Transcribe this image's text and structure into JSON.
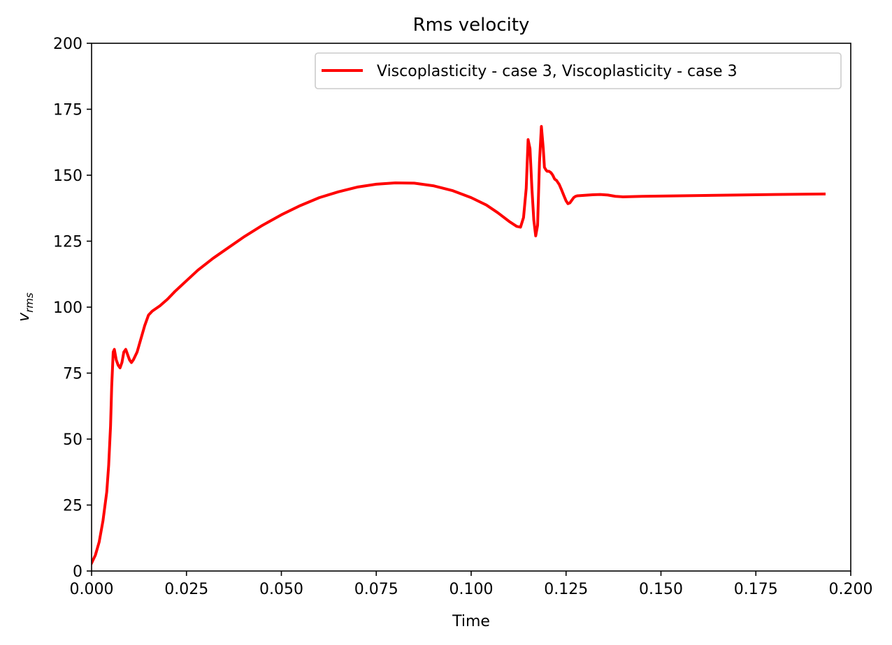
{
  "chart_data": {
    "type": "line",
    "title": "Rms velocity",
    "xlabel": "Time",
    "ylabel_main": "v",
    "ylabel_sub": "rms",
    "xlim": [
      0,
      0.2
    ],
    "ylim": [
      0,
      200
    ],
    "x_ticks": [
      0,
      0.025,
      0.05,
      0.075,
      0.1,
      0.125,
      0.15,
      0.175,
      0.2
    ],
    "x_tick_labels": [
      "0.000",
      "0.025",
      "0.050",
      "0.075",
      "0.100",
      "0.125",
      "0.150",
      "0.175",
      "0.200"
    ],
    "y_ticks": [
      0,
      25,
      50,
      75,
      100,
      125,
      150,
      175,
      200
    ],
    "y_tick_labels": [
      "0",
      "25",
      "50",
      "75",
      "100",
      "125",
      "150",
      "175",
      "200"
    ],
    "grid": false,
    "legend_position": "top-right",
    "series": [
      {
        "name": "Viscoplasticity - case 3, Viscoplasticity - case 3",
        "color": "#ff0000",
        "x": [
          0.0,
          0.001,
          0.002,
          0.003,
          0.004,
          0.0045,
          0.005,
          0.0053,
          0.0057,
          0.006,
          0.0065,
          0.007,
          0.0075,
          0.008,
          0.0085,
          0.009,
          0.0095,
          0.01,
          0.0105,
          0.011,
          0.012,
          0.013,
          0.014,
          0.015,
          0.016,
          0.017,
          0.018,
          0.02,
          0.022,
          0.025,
          0.028,
          0.032,
          0.036,
          0.04,
          0.045,
          0.05,
          0.055,
          0.06,
          0.065,
          0.07,
          0.075,
          0.08,
          0.085,
          0.09,
          0.095,
          0.1,
          0.104,
          0.107,
          0.11,
          0.112,
          0.113,
          0.1138,
          0.1145,
          0.115,
          0.1155,
          0.116,
          0.1165,
          0.117,
          0.1175,
          0.118,
          0.1185,
          0.119,
          0.1193,
          0.1197,
          0.12,
          0.1205,
          0.121,
          0.1215,
          0.122,
          0.1225,
          0.1232,
          0.1238,
          0.1245,
          0.125,
          0.1255,
          0.126,
          0.1265,
          0.127,
          0.1275,
          0.128,
          0.129,
          0.13,
          0.132,
          0.134,
          0.136,
          0.138,
          0.14,
          0.145,
          0.15,
          0.16,
          0.17,
          0.18,
          0.193
        ],
        "y": [
          3,
          6,
          11,
          19,
          30,
          40,
          55,
          70,
          83,
          84,
          80,
          78,
          77,
          79,
          83,
          84,
          82,
          80,
          79,
          80,
          83,
          88,
          93,
          97,
          98.5,
          99.5,
          100.5,
          103,
          106,
          110,
          114,
          118.5,
          122.5,
          126.5,
          131,
          135,
          138.5,
          141.5,
          143.7,
          145.5,
          146.6,
          147.1,
          147,
          146,
          144.2,
          141.5,
          138.7,
          135.8,
          132.5,
          130.6,
          130.3,
          134,
          145,
          163.5,
          160,
          145,
          133,
          127,
          131,
          155,
          168.5,
          160,
          153,
          152,
          151.5,
          151.5,
          151,
          150,
          148.5,
          148,
          146.5,
          144.5,
          142,
          140.3,
          139.2,
          139.5,
          140.5,
          141.5,
          142,
          142.2,
          142.3,
          142.4,
          142.6,
          142.7,
          142.5,
          142,
          141.8,
          142,
          142.1,
          142.3,
          142.5,
          142.7,
          142.9
        ]
      }
    ]
  }
}
